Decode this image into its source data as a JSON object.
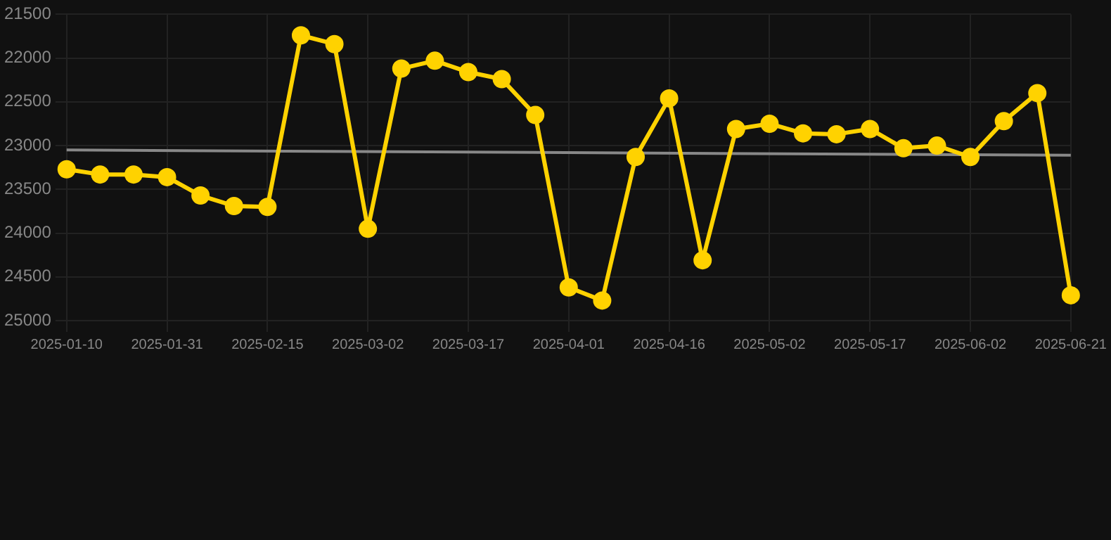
{
  "chart_data": {
    "type": "line",
    "categories": [
      "2025-01-10",
      null,
      null,
      "2025-01-31",
      null,
      null,
      "2025-02-15",
      null,
      null,
      "2025-03-02",
      null,
      null,
      "2025-03-17",
      null,
      null,
      "2025-04-01",
      null,
      null,
      "2025-04-16",
      null,
      null,
      "2025-05-02",
      null,
      null,
      "2025-05-17",
      null,
      null,
      "2025-06-02",
      null,
      null,
      "2025-06-21"
    ],
    "series": [
      {
        "color": "#ffd200",
        "marker": "circle",
        "values": [
          23270,
          23330,
          23330,
          23360,
          23570,
          23690,
          23700,
          21740,
          21840,
          23950,
          22120,
          22030,
          22160,
          22240,
          22650,
          24620,
          24770,
          23130,
          22460,
          24310,
          22810,
          22750,
          22860,
          22870,
          22810,
          23030,
          23000,
          23130,
          22720,
          22400,
          24710
        ]
      },
      {
        "color": "#888888",
        "marker": "none",
        "values": [
          23050,
          null,
          null,
          null,
          null,
          null,
          null,
          null,
          null,
          null,
          null,
          null,
          null,
          null,
          null,
          null,
          null,
          null,
          null,
          null,
          null,
          null,
          null,
          null,
          null,
          null,
          null,
          null,
          null,
          null,
          23110
        ]
      }
    ],
    "ylim": [
      25000,
      21500
    ],
    "yticks": [
      21500,
      22000,
      22500,
      23000,
      23500,
      24000,
      24500,
      25000
    ],
    "grid": true,
    "legend": false
  }
}
